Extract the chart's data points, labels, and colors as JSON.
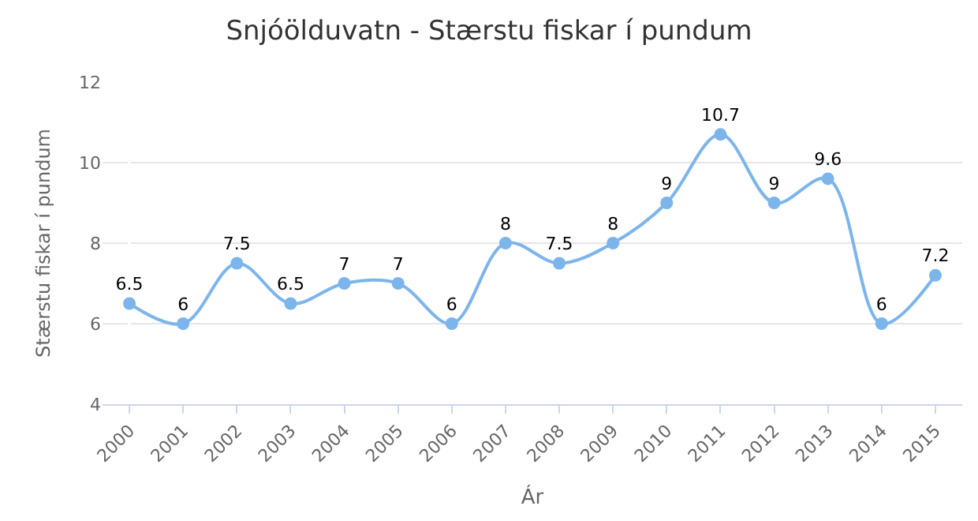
{
  "chart_data": {
    "type": "line",
    "title": "Snjóölduvatn - Stærstu fiskar í pundum",
    "xlabel": "Ár",
    "ylabel": "Stærstu fiskar í pundum",
    "categories": [
      "2000",
      "2001",
      "2002",
      "2003",
      "2004",
      "2005",
      "2006",
      "2007",
      "2008",
      "2009",
      "2010",
      "2011",
      "2012",
      "2013",
      "2014",
      "2015"
    ],
    "values": [
      6.5,
      6,
      7.5,
      6.5,
      7,
      7,
      6,
      8,
      7.5,
      8,
      9,
      10.7,
      9,
      9.6,
      6,
      7.2
    ],
    "color": "#7cb5ec",
    "ylim": [
      4,
      12
    ],
    "yticks": [
      4,
      6,
      8,
      10,
      12
    ],
    "grid": "y",
    "marker": "circle",
    "line_style": "solid",
    "data_labels": true,
    "legend": false
  }
}
